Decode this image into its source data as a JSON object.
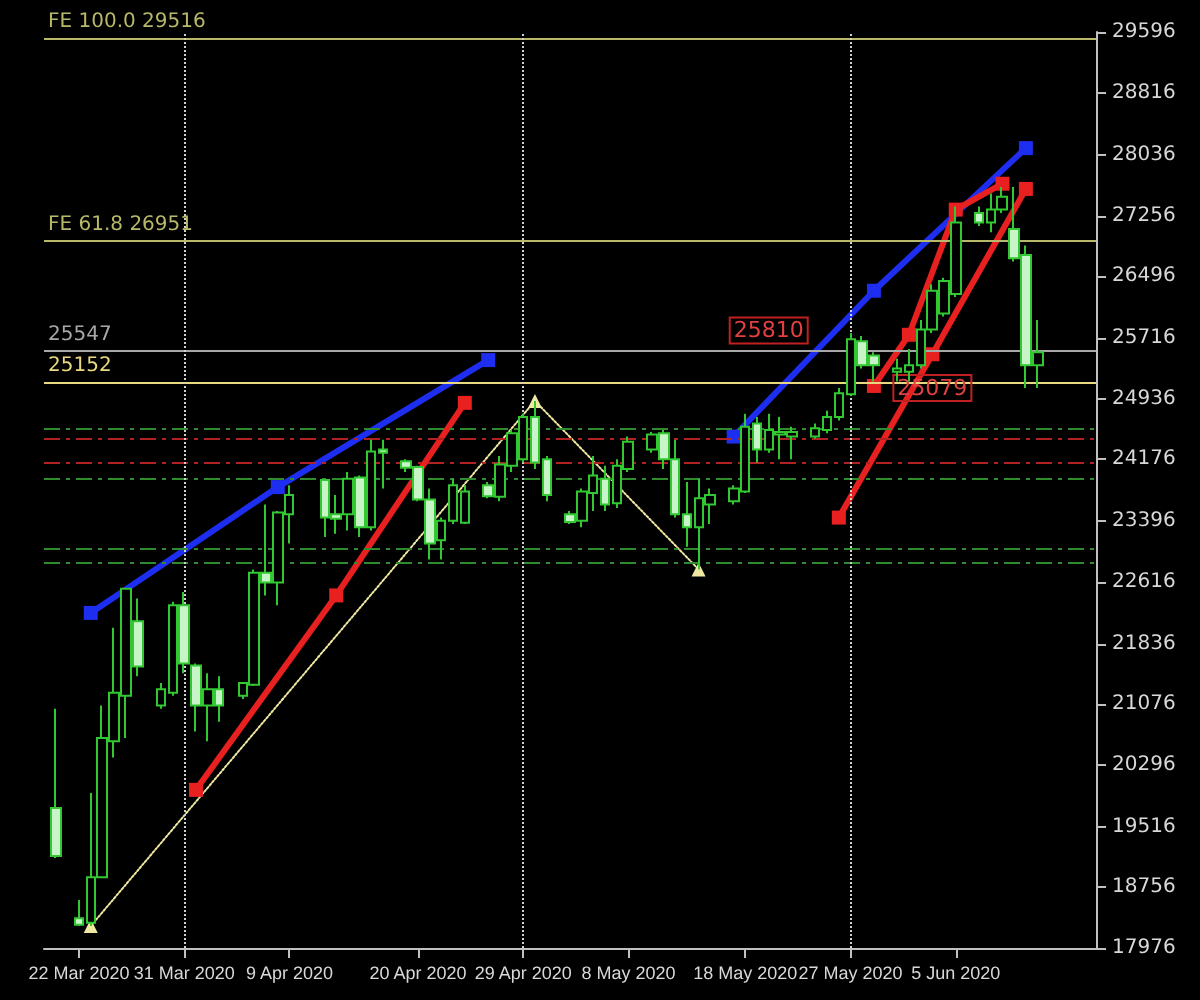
{
  "chart_data": {
    "type": "candlestick",
    "x": [
      "2020-03-20",
      "2020-03-22",
      "2020-03-23",
      "2020-03-24",
      "2020-03-25",
      "2020-03-26",
      "2020-03-27",
      "2020-03-29",
      "2020-03-30",
      "2020-03-31",
      "2020-04-01",
      "2020-04-02",
      "2020-04-03",
      "2020-04-05",
      "2020-04-06",
      "2020-04-07",
      "2020-04-08",
      "2020-04-09",
      "2020-04-12",
      "2020-04-13",
      "2020-04-14",
      "2020-04-15",
      "2020-04-16",
      "2020-04-17",
      "2020-04-19",
      "2020-04-20",
      "2020-04-21",
      "2020-04-22",
      "2020-04-23",
      "2020-04-24",
      "2020-04-26",
      "2020-04-27",
      "2020-04-28",
      "2020-04-29",
      "2020-04-30",
      "2020-05-01",
      "2020-05-03",
      "2020-05-04",
      "2020-05-05",
      "2020-05-06",
      "2020-05-07",
      "2020-05-08",
      "2020-05-10",
      "2020-05-11",
      "2020-05-12",
      "2020-05-13",
      "2020-05-14",
      "2020-05-15",
      "2020-05-17",
      "2020-05-18",
      "2020-05-19",
      "2020-05-20",
      "2020-05-21",
      "2020-05-22",
      "2020-05-24",
      "2020-05-25",
      "2020-05-26",
      "2020-05-27",
      "2020-05-28",
      "2020-05-29",
      "2020-05-31",
      "2020-06-01",
      "2020-06-02",
      "2020-06-03",
      "2020-06-04",
      "2020-06-05",
      "2020-06-07",
      "2020-06-08",
      "2020-06-09",
      "2020-06-10",
      "2020-06-11",
      "2020-06-12"
    ],
    "ohlc": [
      [
        19752,
        21010,
        19118,
        19143
      ],
      [
        18353,
        18585,
        18255,
        18272
      ],
      [
        18297,
        19942,
        18255,
        18872
      ],
      [
        18872,
        21052,
        18872,
        20640
      ],
      [
        20598,
        22039,
        20394,
        21215
      ],
      [
        21176,
        22533,
        20640,
        22533
      ],
      [
        22121,
        22409,
        21422,
        21546
      ],
      [
        21052,
        21339,
        21010,
        21257
      ],
      [
        21215,
        22367,
        21176,
        22325
      ],
      [
        22325,
        22491,
        21462,
        21585
      ],
      [
        21561,
        21585,
        20722,
        21052
      ],
      [
        21052,
        21462,
        20598,
        21257
      ],
      [
        21257,
        21422,
        20845,
        21052
      ],
      [
        21176,
        21339,
        21134,
        21339
      ],
      [
        21314,
        22779,
        21299,
        22737
      ],
      [
        22737,
        23601,
        22449,
        22614
      ],
      [
        22614,
        23519,
        22325,
        23502
      ],
      [
        23477,
        23847,
        23107,
        23724
      ],
      [
        23914,
        23929,
        23189,
        23436
      ],
      [
        23477,
        23724,
        23231,
        23421
      ],
      [
        23477,
        24013,
        23273,
        23929
      ],
      [
        23946,
        23971,
        23189,
        23312
      ],
      [
        23312,
        24422,
        23273,
        24274
      ],
      [
        24299,
        24422,
        23805,
        24259
      ],
      [
        24151,
        24176,
        24013,
        24069
      ],
      [
        24077,
        24094,
        23643,
        23667
      ],
      [
        23667,
        23805,
        22903,
        23107
      ],
      [
        23149,
        23436,
        22903,
        23396
      ],
      [
        23396,
        23929,
        23354,
        23847
      ],
      [
        23371,
        23847,
        23354,
        23766
      ],
      [
        23847,
        23889,
        23682,
        23707
      ],
      [
        23699,
        24218,
        23643,
        24111
      ],
      [
        24094,
        24546,
        24013,
        24506
      ],
      [
        24176,
        24753,
        24136,
        24711
      ],
      [
        24711,
        24916,
        24052,
        24136
      ],
      [
        24176,
        24218,
        23643,
        23724
      ],
      [
        23477,
        23519,
        23354,
        23379
      ],
      [
        23396,
        23805,
        23312,
        23766
      ],
      [
        23749,
        24218,
        23519,
        23971
      ],
      [
        23929,
        24094,
        23519,
        23601
      ],
      [
        23618,
        24176,
        23559,
        24094
      ],
      [
        24052,
        24464,
        24013,
        24398
      ],
      [
        24299,
        24521,
        24259,
        24489
      ],
      [
        24506,
        24546,
        24052,
        24176
      ],
      [
        24176,
        24422,
        23436,
        23477
      ],
      [
        23477,
        23889,
        23065,
        23312
      ],
      [
        23312,
        23929,
        22779,
        23682
      ],
      [
        23601,
        23805,
        23354,
        23724
      ],
      [
        23643,
        23847,
        23601,
        23805
      ],
      [
        23766,
        24753,
        23749,
        24588
      ],
      [
        24629,
        24711,
        24136,
        24299
      ],
      [
        24299,
        24753,
        24259,
        24546
      ],
      [
        24489,
        24711,
        24176,
        24521
      ],
      [
        24464,
        24588,
        24176,
        24521
      ],
      [
        24464,
        24629,
        24439,
        24570
      ],
      [
        24546,
        24792,
        24506,
        24711
      ],
      [
        24711,
        25081,
        24669,
        25014
      ],
      [
        25000,
        25779,
        24982,
        25698
      ],
      [
        25673,
        25740,
        25328,
        25370
      ],
      [
        25493,
        25533,
        25162,
        25370
      ],
      [
        25286,
        25451,
        25162,
        25328
      ],
      [
        25286,
        25574,
        25162,
        25370
      ],
      [
        25370,
        25944,
        25328,
        25821
      ],
      [
        25821,
        26396,
        25779,
        26314
      ],
      [
        26026,
        26480,
        25986,
        26438
      ],
      [
        26273,
        27383,
        26233,
        27178
      ],
      [
        27301,
        27383,
        27136,
        27178
      ],
      [
        27178,
        27548,
        27055,
        27343
      ],
      [
        27343,
        27629,
        27301,
        27506
      ],
      [
        27096,
        27629,
        26685,
        26726
      ],
      [
        26766,
        26889,
        25081,
        25370
      ],
      [
        25370,
        25944,
        25081,
        25533
      ]
    ],
    "series": [
      {
        "type": "line",
        "color": "#1e2ef0",
        "x": [
          "2020-03-23",
          "2020-04-08",
          "2020-04-26"
        ],
        "values": [
          22227,
          23823,
          25434
        ]
      },
      {
        "type": "line",
        "color": "#1e2ef0",
        "x": [
          "2020-05-17",
          "2020-05-29",
          "2020-06-11"
        ],
        "values": [
          24464,
          26314,
          28123
        ]
      },
      {
        "type": "line",
        "color": "#e82020",
        "x": [
          "2020-04-01",
          "2020-04-13",
          "2020-04-24"
        ],
        "values": [
          19982,
          22449,
          24891
        ]
      },
      {
        "type": "line",
        "color": "#e82020",
        "x": [
          "2020-05-26",
          "2020-06-03",
          "2020-06-11"
        ],
        "values": [
          23436,
          25508,
          27605
        ]
      },
      {
        "type": "line",
        "color": "#e82020",
        "x": [
          "2020-05-29",
          "2020-06-01",
          "2020-06-05",
          "2020-06-09"
        ],
        "values": [
          25106,
          25755,
          27343,
          27671
        ]
      },
      {
        "type": "line",
        "color": "#f0e8a0",
        "line_style": "dotted",
        "marker": "triangle",
        "x": [
          "2020-03-23",
          "2020-04-30",
          "2020-05-14"
        ],
        "values": [
          18255,
          24916,
          22779
        ]
      }
    ],
    "xlim": [
      "2020-03-19",
      "2020-06-17"
    ],
    "xticks": [
      {
        "value": "2020-03-22",
        "label": "22 Mar 2020"
      },
      {
        "value": "2020-03-31",
        "label": "31 Mar 2020"
      },
      {
        "value": "2020-04-09",
        "label": "9 Apr 2020"
      },
      {
        "value": "2020-04-20",
        "label": "20 Apr 2020"
      },
      {
        "value": "2020-04-29",
        "label": "29 Apr 2020"
      },
      {
        "value": "2020-05-08",
        "label": "8 May 2020"
      },
      {
        "value": "2020-05-18",
        "label": "18 May 2020"
      },
      {
        "value": "2020-05-27",
        "label": "27 May 2020"
      },
      {
        "value": "2020-06-05",
        "label": "5 Jun 2020"
      }
    ],
    "ylim": [
      17976,
      29596
    ],
    "yticks": [
      17976,
      18756,
      19516,
      20296,
      21076,
      21836,
      22616,
      23396,
      24176,
      24936,
      25716,
      26496,
      27256,
      28036,
      28816,
      29596
    ],
    "ref_lines": [
      {
        "axis": "y",
        "value": 29516,
        "label": "FE 100.0 29516",
        "color": "#b8b86a"
      },
      {
        "axis": "y",
        "value": 26951,
        "label": "FE 61.8 26951",
        "color": "#b8b86a"
      },
      {
        "axis": "y",
        "value": 25547,
        "label": "25547",
        "color": "#a8a8a8"
      },
      {
        "axis": "y",
        "value": 25152,
        "label": "25152",
        "color": "#e8d880"
      },
      {
        "axis": "y",
        "value": 24560,
        "label": null,
        "color": "#2e8b2e",
        "line_style": "dashed"
      },
      {
        "axis": "y",
        "value": 24450,
        "label": null,
        "color": "#b22222",
        "line_style": "dashed"
      },
      {
        "axis": "y",
        "value": 24140,
        "label": null,
        "color": "#b22222",
        "line_style": "dashed"
      },
      {
        "axis": "y",
        "value": 23930,
        "label": null,
        "color": "#2e8b2e",
        "line_style": "dashed"
      },
      {
        "axis": "y",
        "value": 23040,
        "label": null,
        "color": "#2e8b2e",
        "line_style": "dashed"
      },
      {
        "axis": "y",
        "value": 22860,
        "label": null,
        "color": "#2e8b2e",
        "line_style": "dashed"
      },
      {
        "axis": "x",
        "value": "2020-03-31",
        "label": null,
        "color": "#d0d0d0",
        "line_style": "dotted"
      },
      {
        "axis": "x",
        "value": "2020-04-29",
        "label": null,
        "color": "#d0d0d0",
        "line_style": "dotted"
      },
      {
        "axis": "x",
        "value": "2020-05-27",
        "label": null,
        "color": "#d0d0d0",
        "line_style": "dotted"
      }
    ],
    "annotations": [
      {
        "text": "25810",
        "x": "2020-05-20",
        "y": 25810
      },
      {
        "text": "25079",
        "x": "2020-06-03",
        "y": 25079
      }
    ],
    "marker": "square",
    "line_style": "solid",
    "grid": false
  }
}
